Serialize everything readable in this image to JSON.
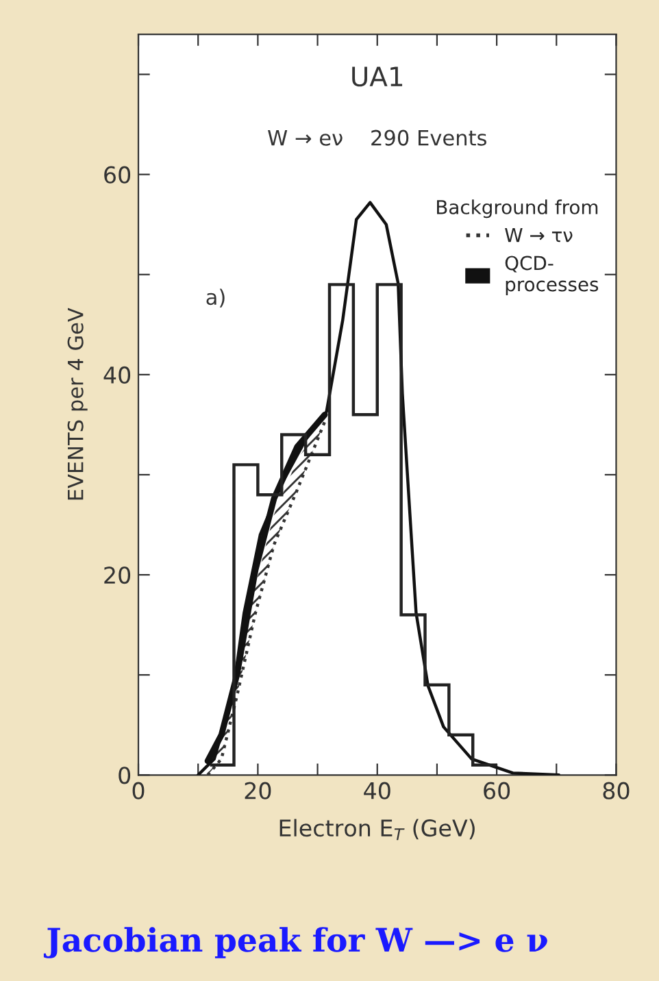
{
  "chart_data": {
    "type": "histogram",
    "title": "UA1",
    "subtitle": "W → eν    290 Events",
    "xlabel": "Electron E$_{T}$ (GeV)",
    "ylabel": "EVENTS per 4 GeV",
    "legend_title": "Background from",
    "bins": [
      12,
      16,
      20,
      24,
      28,
      32,
      36,
      40,
      44,
      48,
      52,
      56,
      60
    ],
    "values": [
      1,
      31,
      28,
      34,
      32,
      49,
      36,
      49,
      16,
      9,
      4,
      1
    ],
    "color": "#222222",
    "series": [
      {
        "type": "line",
        "color": "#111111",
        "x": [
          10.0,
          12.7,
          15.8,
          17.7,
          20.4,
          23.9,
          28.1,
          31.5,
          34.2,
          36.5,
          38.8,
          41.5,
          43.5,
          44.2,
          46.5,
          48.5,
          51.1,
          55.8,
          62.7,
          70.4
        ],
        "values": [
          0,
          1.6,
          8.0,
          16.2,
          24,
          29,
          33.6,
          36.3,
          45.4,
          55.5,
          57.2,
          55.0,
          49.1,
          38.1,
          16.2,
          8.9,
          4.8,
          1.6,
          0.2,
          0
        ]
      },
      {
        "type": "line",
        "name": "W → τν",
        "color": "#333333",
        "line_style": "dotted",
        "x": [
          11.6,
          13.9,
          16.5,
          19.6,
          22.7,
          26.6,
          31.2
        ],
        "values": [
          0,
          1.6,
          7.9,
          16.2,
          23,
          28.5,
          35.3
        ],
        "lower": [
          0,
          1.6,
          7.9,
          16.2,
          23,
          28.5,
          35.3
        ],
        "upper": [
          1.2,
          3.5,
          9,
          19,
          26,
          31.5,
          35.6
        ]
      },
      {
        "type": "line",
        "name": "QCD-\nprocesses",
        "color": "#111111",
        "x": [
          11.6,
          13.9,
          16.5,
          19.6,
          22.7,
          26.6,
          31.2
        ],
        "values": [
          1.4,
          4.0,
          10,
          20.5,
          27.6,
          32.8,
          36
        ]
      }
    ],
    "xlim": [
      0,
      80
    ],
    "ylim": [
      0,
      74
    ],
    "xticks": [
      0,
      {
        "value": 10,
        "label": null
      },
      20,
      {
        "value": 30,
        "label": null
      },
      40,
      {
        "value": 50,
        "label": null
      },
      60,
      {
        "value": 70,
        "label": null
      },
      80
    ],
    "yticks": [
      0,
      {
        "value": 10,
        "label": null
      },
      20,
      {
        "value": 30,
        "label": null
      },
      40,
      {
        "value": 50,
        "label": null
      },
      60,
      {
        "value": 70,
        "label": null
      }
    ],
    "legend": "top right",
    "grid": false,
    "annotations": [
      "a)",
      "Jacobian peak for W —> e ν"
    ]
  }
}
